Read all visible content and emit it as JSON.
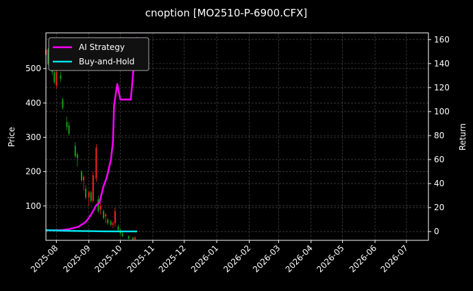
{
  "chart_data": {
    "type": "line",
    "title": "cnoption [MO2510-P-6900.CFX]",
    "ylabel_left": "Price",
    "ylabel_right": "Return",
    "xlim": [
      "2025-07-22",
      "2026-07-22"
    ],
    "ylim_left": [
      0,
      604
    ],
    "ylim_right": [
      -7.3,
      165.6
    ],
    "x_ticks": [
      "2025-08",
      "2025-09",
      "2025-10",
      "2025-11",
      "2025-12",
      "2026-01",
      "2026-02",
      "2026-03",
      "2026-04",
      "2026-05",
      "2026-06",
      "2026-07"
    ],
    "y_ticks_left": [
      100,
      200,
      300,
      400,
      500
    ],
    "y_ticks_right": [
      0,
      20,
      40,
      60,
      80,
      100,
      120,
      140,
      160
    ],
    "grid": true,
    "legend_position": "top-left",
    "colors": {
      "up": "#ff2020",
      "down": "#12a012",
      "strategy": "#ff00ff",
      "buy_hold": "#00e5ee",
      "background": "#000000",
      "grid": "#555555"
    },
    "candles": [
      [
        "2025-07-22",
        540,
        565,
        520,
        555
      ],
      [
        "2025-07-24",
        555,
        560,
        510,
        515
      ],
      [
        "2025-07-28",
        515,
        530,
        480,
        490
      ],
      [
        "2025-07-30",
        490,
        500,
        455,
        460
      ],
      [
        "2025-08-01",
        450,
        500,
        440,
        490
      ],
      [
        "2025-08-05",
        480,
        490,
        460,
        470
      ],
      [
        "2025-08-07",
        410,
        415,
        380,
        385
      ],
      [
        "2025-08-11",
        345,
        360,
        320,
        330
      ],
      [
        "2025-08-13",
        335,
        345,
        305,
        310
      ],
      [
        "2025-08-19",
        275,
        285,
        240,
        245
      ],
      [
        "2025-08-21",
        250,
        255,
        215,
        240
      ],
      [
        "2025-08-25",
        200,
        205,
        170,
        175
      ],
      [
        "2025-08-27",
        175,
        190,
        145,
        185
      ],
      [
        "2025-08-29",
        150,
        160,
        120,
        125
      ],
      [
        "2025-09-01",
        125,
        145,
        100,
        140
      ],
      [
        "2025-09-03",
        140,
        145,
        110,
        115
      ],
      [
        "2025-09-05",
        115,
        200,
        110,
        190
      ],
      [
        "2025-09-08",
        180,
        280,
        170,
        270
      ],
      [
        "2025-09-10",
        120,
        130,
        80,
        85
      ],
      [
        "2025-09-12",
        90,
        110,
        75,
        100
      ],
      [
        "2025-09-15",
        85,
        90,
        60,
        65
      ],
      [
        "2025-09-17",
        70,
        80,
        50,
        75
      ],
      [
        "2025-09-19",
        60,
        65,
        45,
        50
      ],
      [
        "2025-09-22",
        55,
        60,
        40,
        45
      ],
      [
        "2025-09-24",
        45,
        55,
        35,
        50
      ],
      [
        "2025-09-26",
        50,
        95,
        40,
        85
      ],
      [
        "2025-09-29",
        40,
        45,
        25,
        30
      ],
      [
        "2025-10-01",
        30,
        35,
        15,
        20
      ],
      [
        "2025-10-03",
        20,
        28,
        10,
        12
      ],
      [
        "2025-10-09",
        12,
        15,
        3,
        5
      ],
      [
        "2025-10-13",
        8,
        10,
        1,
        2
      ],
      [
        "2025-10-15",
        3,
        12,
        0,
        8
      ]
    ],
    "series": [
      {
        "name": "AI Strategy",
        "axis": "right",
        "x": [
          "2025-07-22",
          "2025-08-05",
          "2025-08-13",
          "2025-08-22",
          "2025-08-29",
          "2025-09-03",
          "2025-09-08",
          "2025-09-11",
          "2025-09-15",
          "2025-09-18",
          "2025-09-22",
          "2025-09-24",
          "2025-09-25",
          "2025-09-28",
          "2025-10-01",
          "2025-10-11",
          "2025-10-14",
          "2025-10-17"
        ],
        "y": [
          1,
          1.2,
          2,
          4,
          8,
          14,
          22,
          24,
          38,
          45,
          60,
          75,
          105,
          123,
          110,
          110,
          140,
          162
        ]
      },
      {
        "name": "Buy-and-Hold",
        "axis": "right",
        "x": [
          "2025-07-22",
          "2025-08-15",
          "2025-09-15",
          "2025-10-17"
        ],
        "y": [
          1.2,
          0.6,
          0.2,
          0.1
        ]
      }
    ]
  }
}
